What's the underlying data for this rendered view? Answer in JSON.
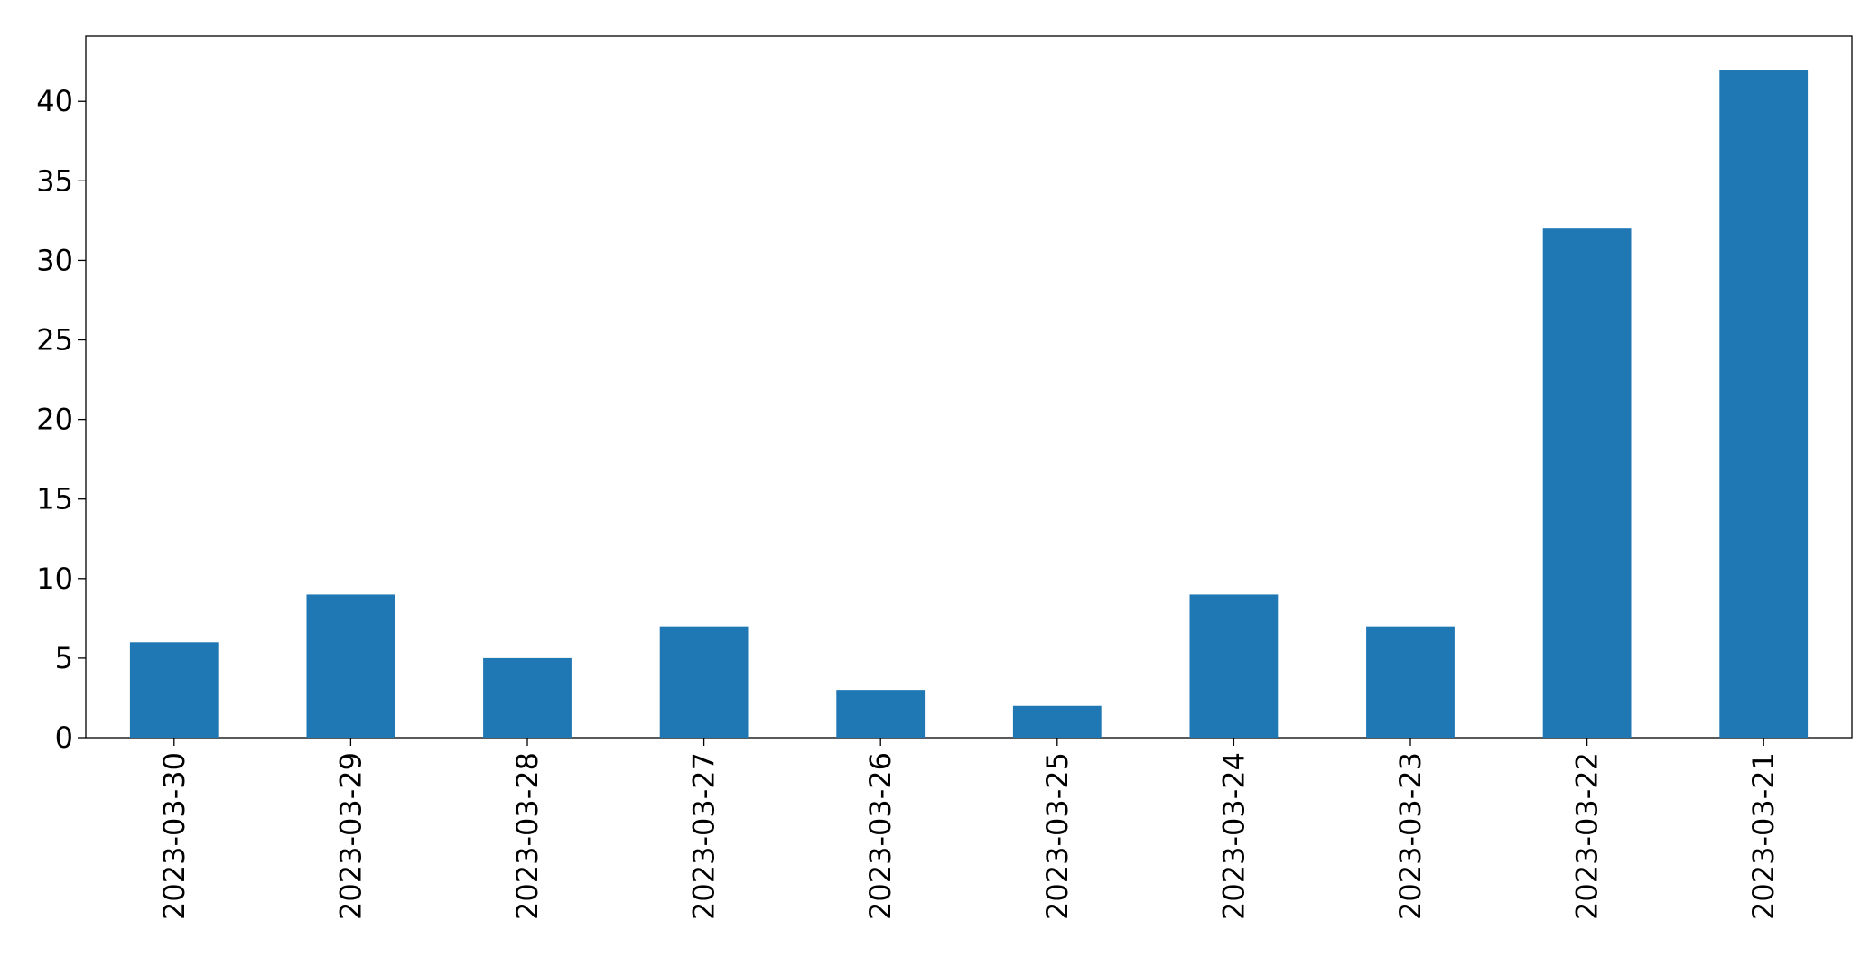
{
  "chart_data": {
    "type": "bar",
    "categories": [
      "2023-03-30",
      "2023-03-29",
      "2023-03-28",
      "2023-03-27",
      "2023-03-26",
      "2023-03-25",
      "2023-03-24",
      "2023-03-23",
      "2023-03-22",
      "2023-03-21"
    ],
    "values": [
      6,
      9,
      5,
      7,
      3,
      2,
      9,
      7,
      32,
      42
    ],
    "color": "#1f77b4",
    "ylim": [
      0,
      44.1
    ],
    "yticks": [
      0,
      5,
      10,
      15,
      20,
      25,
      30,
      35,
      40
    ],
    "grid": false
  }
}
